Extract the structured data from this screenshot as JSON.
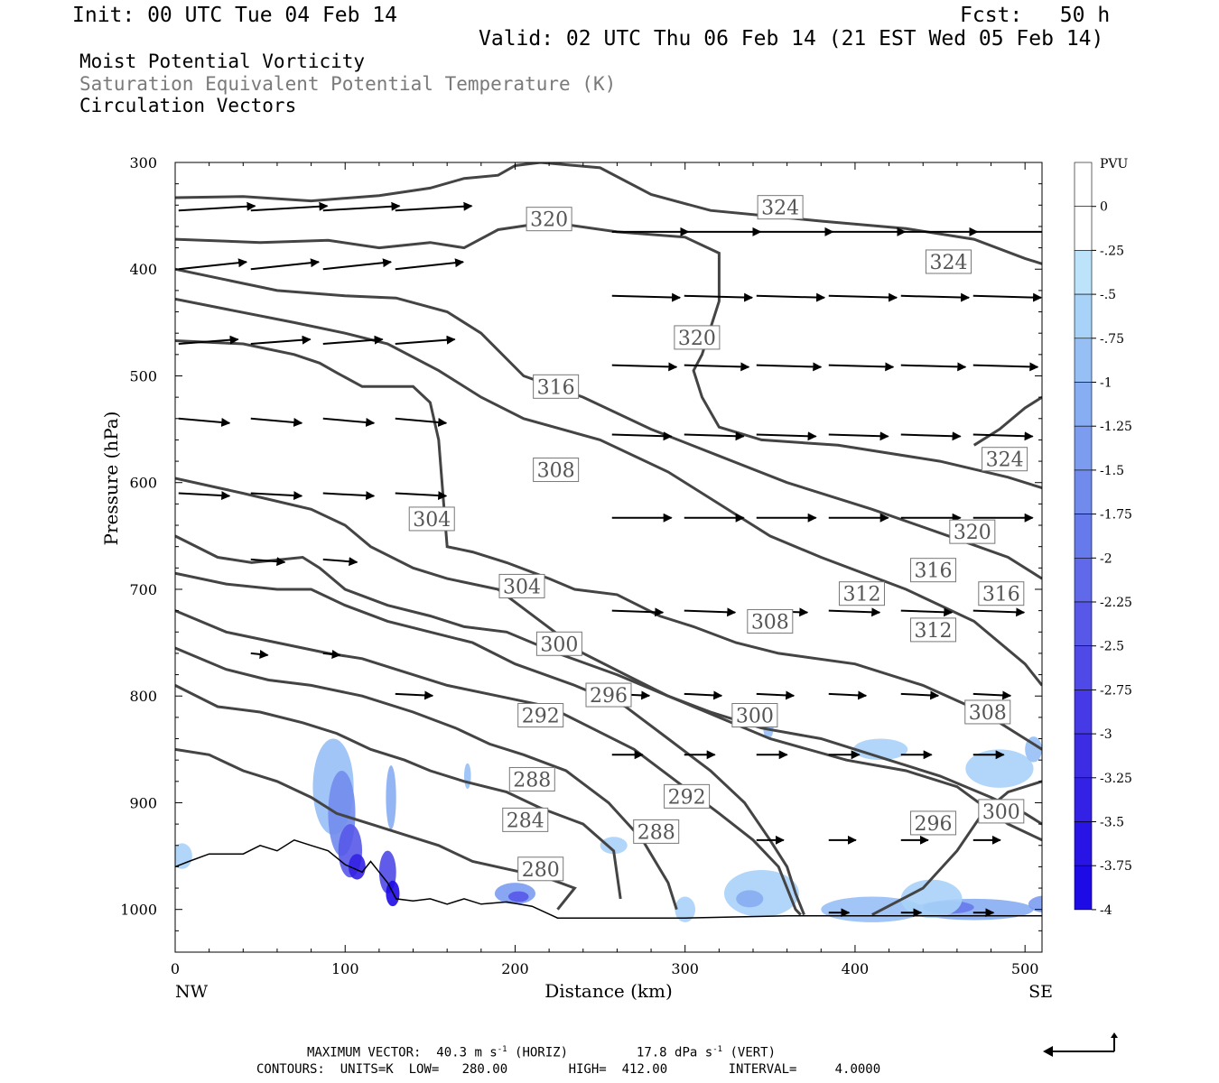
{
  "header": {
    "init": "Init: 00 UTC Tue 04 Feb 14",
    "fcst": "Fcst:   50 h",
    "valid": "Valid: 02 UTC Thu 06 Feb 14 (21 EST Wed 05 Feb 14)",
    "field1": "Moist Potential Vorticity",
    "field2": "Saturation Equivalent Potential Temperature (K)",
    "field3": "Circulation Vectors"
  },
  "footer": {
    "max_vector_label": "MAXIMUM VECTOR:",
    "max_vector_horiz": "40.3 m s",
    "horiz_tag": "(HORIZ)",
    "max_vector_vert": "17.8 dPa s",
    "vert_tag": "(VERT)",
    "exponent": "-1",
    "contours": "CONTOURS:  UNITS=K  LOW=   280.00        HIGH=  412.00        INTERVAL=     4.0000"
  },
  "colors": {
    "contour": "#444444",
    "pv_shades": [
      "#ffffff",
      "#ffffff",
      "#bde3fb",
      "#a8d2f8",
      "#96bff5",
      "#87adf2",
      "#7b9cef",
      "#718bed",
      "#677aeb",
      "#5f69e9",
      "#5858e8",
      "#4f49e7",
      "#463ae6",
      "#3c2de5",
      "#3321e5",
      "#2914e6",
      "#1e0ae7"
    ]
  },
  "chart_data": {
    "type": "cross-section",
    "ylabel": "Pressure (hPa)",
    "xlabel": "Distance (km)",
    "x_left_label": "NW",
    "x_right_label": "SE",
    "xlim": [
      0,
      510
    ],
    "ylim": [
      1040,
      300
    ],
    "xticks": [
      0,
      100,
      200,
      300,
      400,
      500
    ],
    "yticks": [
      300,
      400,
      500,
      600,
      700,
      800,
      900,
      1000
    ],
    "colorbar": {
      "unit": "PVU",
      "labels": [
        "0",
        "-.25",
        "-.5",
        "-.75",
        "-1",
        "-1.25",
        "-1.5",
        "-1.75",
        "-2",
        "-2.25",
        "-2.5",
        "-2.75",
        "-3",
        "-3.25",
        "-3.5",
        "-3.75",
        "-4"
      ]
    },
    "theta_labels": [
      {
        "v": "320",
        "x": 220,
        "y": 353
      },
      {
        "v": "324",
        "x": 356,
        "y": 342
      },
      {
        "v": "324",
        "x": 455,
        "y": 393
      },
      {
        "v": "320",
        "x": 307,
        "y": 464
      },
      {
        "v": "316",
        "x": 224,
        "y": 510
      },
      {
        "v": "324",
        "x": 488,
        "y": 578
      },
      {
        "v": "308",
        "x": 224,
        "y": 588
      },
      {
        "v": "304",
        "x": 151,
        "y": 634
      },
      {
        "v": "320",
        "x": 469,
        "y": 646
      },
      {
        "v": "316",
        "x": 446,
        "y": 682
      },
      {
        "v": "304",
        "x": 204,
        "y": 697
      },
      {
        "v": "312",
        "x": 404,
        "y": 704
      },
      {
        "v": "316",
        "x": 486,
        "y": 704
      },
      {
        "v": "308",
        "x": 350,
        "y": 730
      },
      {
        "v": "312",
        "x": 446,
        "y": 738
      },
      {
        "v": "300",
        "x": 226,
        "y": 751
      },
      {
        "v": "296",
        "x": 255,
        "y": 799
      },
      {
        "v": "292",
        "x": 215,
        "y": 818
      },
      {
        "v": "300",
        "x": 341,
        "y": 818
      },
      {
        "v": "308",
        "x": 478,
        "y": 815
      },
      {
        "v": "288",
        "x": 210,
        "y": 878
      },
      {
        "v": "292",
        "x": 301,
        "y": 894
      },
      {
        "v": "300",
        "x": 486,
        "y": 908
      },
      {
        "v": "284",
        "x": 206,
        "y": 916
      },
      {
        "v": "288",
        "x": 283,
        "y": 927
      },
      {
        "v": "296",
        "x": 446,
        "y": 919
      },
      {
        "v": "280",
        "x": 215,
        "y": 962
      }
    ],
    "max_vector_horiz_ms": 40.3,
    "max_vector_vert_dpas": 17.8,
    "contour_low": 280.0,
    "contour_high": 412.0,
    "contour_interval": 4.0
  }
}
